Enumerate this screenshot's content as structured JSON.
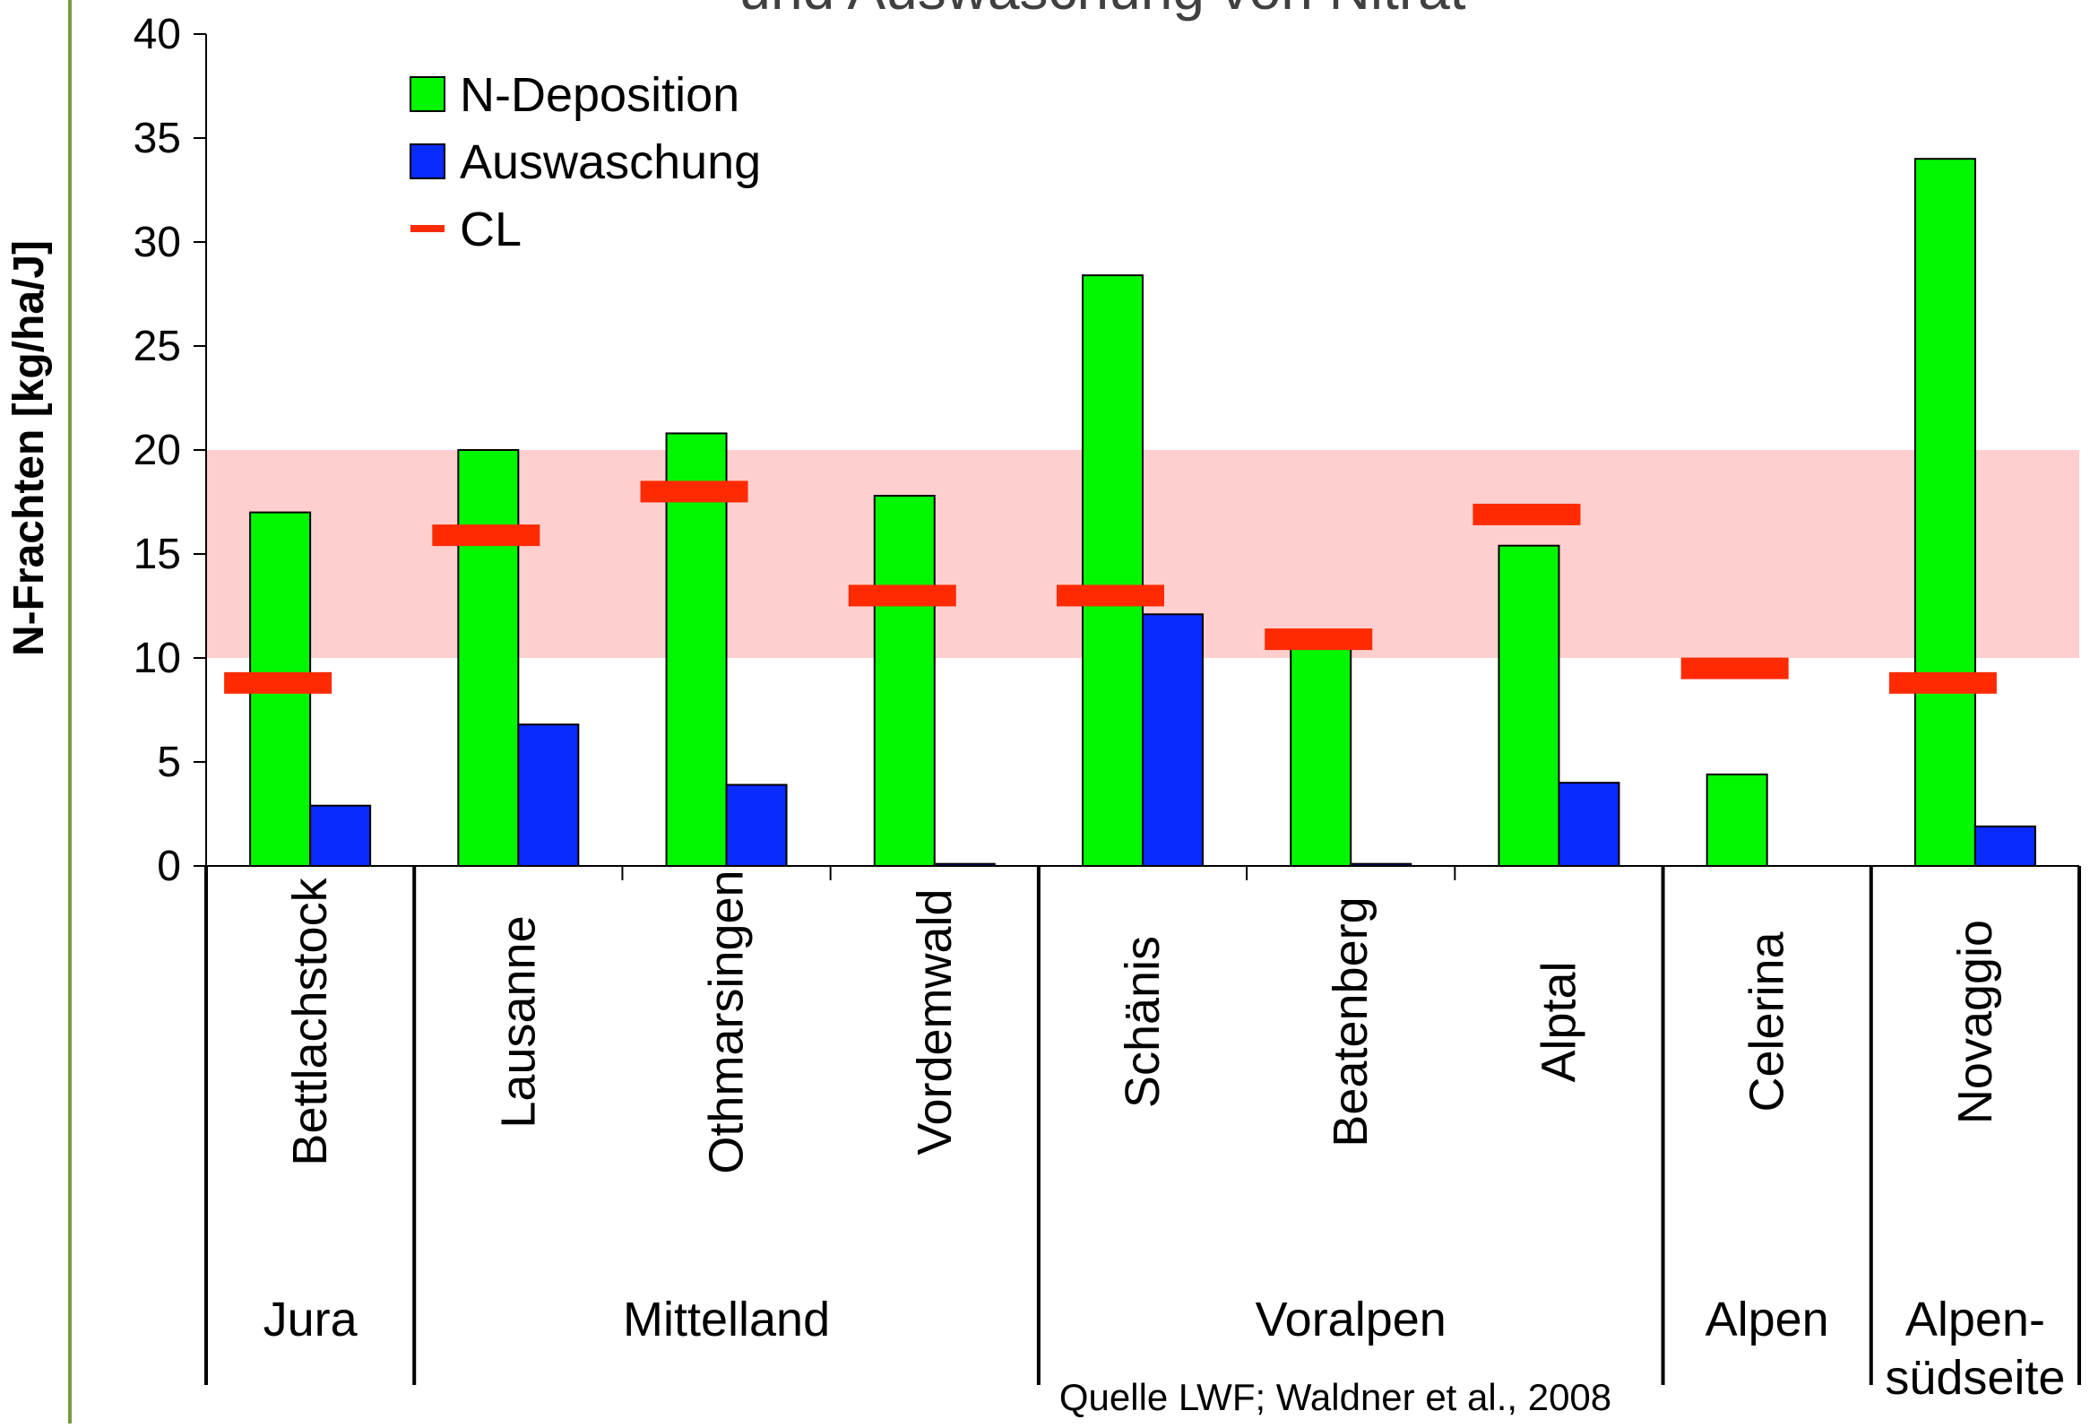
{
  "chart_data": {
    "type": "bar",
    "title": "und Auswaschung von Nitrat",
    "ylabel": "N-Frachten [kg/ha/J]",
    "xlabel": "",
    "ylim": [
      0,
      40
    ],
    "yticks": [
      0,
      5,
      10,
      15,
      20,
      25,
      30,
      35,
      40
    ],
    "categories": [
      "Bettlachstock",
      "Lausanne",
      "Othmarsingen",
      "Vordemwald",
      "Schänis",
      "Beatenberg",
      "Alptal",
      "Celerina",
      "Novaggio"
    ],
    "regions": [
      {
        "label": "Jura",
        "start": 0,
        "end": 0,
        "color": "#595959"
      },
      {
        "label": "Mittelland",
        "start": 1,
        "end": 3,
        "color": "#000000"
      },
      {
        "label": "Voralpen",
        "start": 4,
        "end": 6,
        "color": "#000000"
      },
      {
        "label": "Alpen",
        "start": 7,
        "end": 7,
        "color": "#000000"
      },
      {
        "label": "Alpen-\nsüdseite",
        "start": 8,
        "end": 8,
        "color": "#000000"
      }
    ],
    "series": [
      {
        "name": "N-Deposition",
        "color": "#00f700",
        "values": [
          17.0,
          20.0,
          20.8,
          17.8,
          28.4,
          11.3,
          15.4,
          4.4,
          34.0
        ]
      },
      {
        "name": "Auswaschung",
        "color": "#0a2bff",
        "values": [
          2.9,
          6.8,
          3.9,
          0.1,
          12.1,
          0.1,
          4.0,
          0.0,
          1.9
        ]
      },
      {
        "name": "CL",
        "color": "#ff2a00",
        "values": [
          8.8,
          15.9,
          18.0,
          13.0,
          13.0,
          10.9,
          16.9,
          9.5,
          8.8
        ]
      }
    ],
    "band": {
      "from": 10,
      "to": 20,
      "color": "#ffcfcf"
    },
    "legend_position": "top-left",
    "grid": false,
    "source": "Quelle LWF; Waldner et al., 2008"
  }
}
